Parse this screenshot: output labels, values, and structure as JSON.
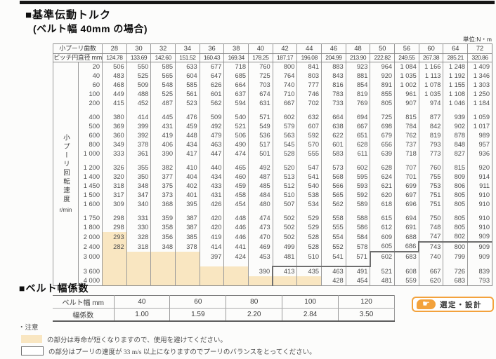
{
  "page": {
    "title": "■基準伝動トルク",
    "subtitle": "(ベルト幅 40mm の場合)",
    "unit_label": "単位:N・m"
  },
  "colors": {
    "peach": "#F9E6C1",
    "orange": "#F3A23C"
  },
  "torque_table": {
    "corner_label_teeth": "小プーリ歯数",
    "corner_label_pitch": "ピッチ円直径 mm",
    "side_label": "小プーリ回転速度",
    "side_unit": "r/min",
    "teeth": [
      "28",
      "30",
      "32",
      "34",
      "36",
      "38",
      "40",
      "42",
      "44",
      "46",
      "48",
      "50",
      "56",
      "60",
      "64",
      "72"
    ],
    "pitch_diameters": [
      "124.78",
      "133.69",
      "142.60",
      "151.52",
      "160.43",
      "169.34",
      "178.25",
      "187.17",
      "196.08",
      "204.99",
      "213.90",
      "222.82",
      "249.55",
      "267.38",
      "285.21",
      "320.86"
    ],
    "groups": [
      {
        "rows": [
          {
            "rpm": "20",
            "v": [
              "506",
              "550",
              "585",
              "633",
              "677",
              "718",
              "760",
              "800",
              "841",
              "883",
              "923",
              "964",
              "1 084",
              "1 166",
              "1 248",
              "1 409"
            ]
          },
          {
            "rpm": "40",
            "v": [
              "483",
              "525",
              "565",
              "604",
              "647",
              "685",
              "725",
              "764",
              "803",
              "843",
              "881",
              "920",
              "1 035",
              "1 113",
              "1 192",
              "1 346"
            ]
          },
          {
            "rpm": "60",
            "v": [
              "468",
              "509",
              "548",
              "585",
              "626",
              "664",
              "703",
              "740",
              "777",
              "816",
              "854",
              "891",
              "1 002",
              "1 078",
              "1 155",
              "1 303"
            ]
          },
          {
            "rpm": "100",
            "v": [
              "449",
              "488",
              "525",
              "561",
              "601",
              "637",
              "674",
              "710",
              "746",
              "783",
              "819",
              "855",
              "961",
              "1 035",
              "1 108",
              "1 250"
            ]
          },
          {
            "rpm": "200",
            "v": [
              "415",
              "452",
              "487",
              "523",
              "562",
              "594",
              "631",
              "667",
              "702",
              "733",
              "769",
              "805",
              "907",
              "974",
              "1 046",
              "1 184"
            ]
          }
        ]
      },
      {
        "gap": {},
        "rows": [
          {
            "rpm": "400",
            "v": [
              "380",
              "414",
              "445",
              "476",
              "509",
              "540",
              "571",
              "602",
              "632",
              "664",
              "694",
              "725",
              "815",
              "877",
              "939",
              "1 059"
            ]
          },
          {
            "rpm": "500",
            "v": [
              "369",
              "399",
              "431",
              "459",
              "492",
              "521",
              "549",
              "579",
              "607",
              "638",
              "667",
              "698",
              "784",
              "842",
              "902",
              "1 017"
            ]
          },
          {
            "rpm": "600",
            "v": [
              "360",
              "392",
              "419",
              "448",
              "479",
              "506",
              "536",
              "563",
              "592",
              "622",
              "651",
              "679",
              "762",
              "819",
              "878",
              "989"
            ]
          },
          {
            "rpm": "800",
            "v": [
              "349",
              "378",
              "406",
              "434",
              "463",
              "490",
              "517",
              "545",
              "570",
              "601",
              "628",
              "656",
              "737",
              "793",
              "848",
              "957"
            ]
          },
          {
            "rpm": "1 000",
            "v": [
              "333",
              "361",
              "390",
              "417",
              "447",
              "474",
              "501",
              "528",
              "555",
              "583",
              "611",
              "639",
              "718",
              "773",
              "827",
              "936"
            ]
          }
        ]
      },
      {
        "gap": {},
        "rows": [
          {
            "rpm": "1 200",
            "v": [
              "326",
              "355",
              "382",
              "410",
              "440",
              "465",
              "492",
              "520",
              "547",
              "573",
              "602",
              "628",
              "707",
              "760",
              "815",
              "920"
            ]
          },
          {
            "rpm": "1 400",
            "v": [
              "320",
              "350",
              "377",
              "404",
              "434",
              "460",
              "487",
              "513",
              "541",
              "568",
              "595",
              "624",
              "701",
              "755",
              "809",
              "914"
            ]
          },
          {
            "rpm": "1 450",
            "v": [
              "318",
              "348",
              "375",
              "402",
              "433",
              "459",
              "485",
              "512",
              "540",
              "566",
              "593",
              "621",
              "699",
              "753",
              "806",
              "911"
            ]
          },
          {
            "rpm": "1 500",
            "v": [
              "317",
              "347",
              "373",
              "401",
              "431",
              "458",
              "484",
              "510",
              "538",
              "565",
              "592",
              "620",
              "697",
              "751",
              "805",
              "910"
            ]
          },
          {
            "rpm": "1 600",
            "v": [
              "309",
              "340",
              "368",
              "395",
              "426",
              "454",
              "480",
              "507",
              "534",
              "562",
              "589",
              "618",
              "696",
              "751",
              "805",
              "910"
            ]
          }
        ]
      },
      {
        "gap": {},
        "rows": [
          {
            "rpm": "1 750",
            "v": [
              "298",
              "331",
              "359",
              "387",
              "420",
              "448",
              "474",
              "502",
              "529",
              "558",
              "588",
              "615",
              "694",
              "750",
              "805",
              "910"
            ]
          },
          {
            "rpm": "1 800",
            "v": [
              "298",
              "330",
              "358",
              "387",
              "420",
              "446",
              "473",
              "502",
              "529",
              "555",
              "586",
              "612",
              "691",
              "748",
              "805",
              "910"
            ]
          },
          {
            "rpm": "2 000",
            "v": [
              "293",
              "328",
              "356",
              "385",
              "419",
              "446",
              "470",
              "502",
              "528",
              "554",
              "584",
              "609",
              "688",
              "747",
              "802",
              "909"
            ],
            "peach": [
              0
            ],
            "bb": [
              13,
              14,
              15
            ]
          },
          {
            "rpm": "2 400",
            "v": [
              "282",
              "318",
              "348",
              "378",
              "414",
              "441",
              "469",
              "499",
              "528",
              "552",
              "578",
              "605",
              "686",
              "743",
              "800",
              "909"
            ],
            "peach": [
              0
            ],
            "bl": [
              13
            ],
            "bb": [
              11,
              12
            ]
          },
          {
            "rpm": "3 000",
            "v": [
              "",
              "",
              "",
              "",
              "397",
              "424",
              "453",
              "481",
              "510",
              "541",
              "571",
              "602",
              "683",
              "740",
              "799",
              "909"
            ],
            "peach": [
              0,
              1,
              2,
              3
            ],
            "bl": [
              11
            ]
          }
        ]
      },
      {
        "gap": {
          "peach": [
            0,
            1,
            2,
            3
          ],
          "bl": [
            11
          ],
          "bb": [
            7,
            8,
            9,
            10
          ]
        },
        "rows": [
          {
            "rpm": "3 600",
            "v": [
              "",
              "",
              "",
              "",
              "",
              "",
              "390",
              "413",
              "435",
              "463",
              "491",
              "521",
              "608",
              "667",
              "726",
              "839"
            ],
            "peach": [
              0,
              1,
              2,
              3,
              4,
              5
            ],
            "bl": [
              7
            ]
          },
          {
            "rpm": "4 000",
            "v": [
              "",
              "",
              "",
              "",
              "",
              "",
              "",
              "",
              "",
              "428",
              "454",
              "481",
              "559",
              "620",
              "683",
              "793"
            ],
            "peach": [
              0,
              1,
              2,
              3,
              4,
              5,
              6,
              7,
              8
            ],
            "bl": [
              7
            ]
          }
        ]
      }
    ]
  },
  "width_section": {
    "title": "■ベルト幅係数",
    "header_label": "ベルト幅 mm",
    "row_label": "幅係数",
    "widths": [
      "40",
      "60",
      "80",
      "100",
      "120"
    ],
    "factors": [
      "1.00",
      "1.59",
      "2.20",
      "2.84",
      "3.50"
    ]
  },
  "notes": {
    "title": "・注意",
    "peach_note": "の部分は寿命が短くなりますので、使用を避けてください。",
    "white_note": "の部分はプーリの速度が 33 m/s 以上になりますのでプーリのバランスをとってください。"
  },
  "action_button": {
    "label": "選定・設計",
    "icon": "pointing-hand-icon"
  }
}
